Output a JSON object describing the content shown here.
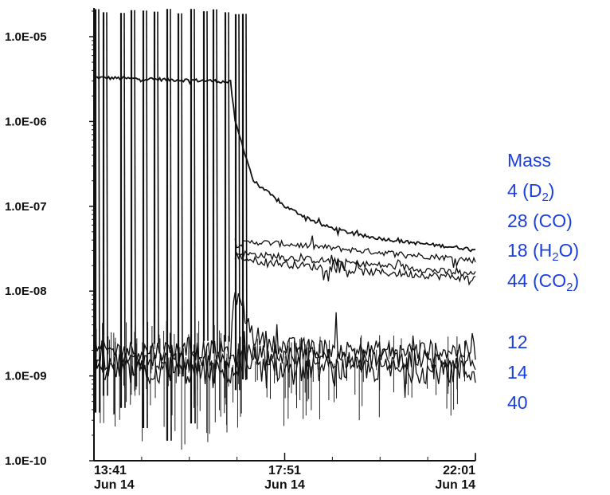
{
  "chart_data": {
    "type": "line",
    "title": "",
    "xlabel": "",
    "ylabel": "",
    "yscale": "log",
    "ylim": [
      1e-10,
      2e-05
    ],
    "y_ticks": [
      "1.0E-05",
      "1.0E-06",
      "1.0E-07",
      "1.0E-08",
      "1.0E-09",
      "1.0E-10"
    ],
    "x_ticks": [
      {
        "time": "13:41",
        "date": "Jun 14"
      },
      {
        "time": "17:51",
        "date": "Jun 14"
      },
      {
        "time": "22:01",
        "date": "Jun 14"
      }
    ],
    "xlim": [
      "13:41",
      "22:01"
    ],
    "legend": {
      "heading": "Mass",
      "entries": [
        {
          "main": "4 (D",
          "sub": "2",
          "tail": ")"
        },
        {
          "main": "28 (CO)",
          "sub": "",
          "tail": ""
        },
        {
          "main": "18 (H",
          "sub": "2",
          "tail": "O)"
        },
        {
          "main": "44 (CO",
          "sub": "2",
          "tail": ")"
        },
        {
          "main": "12",
          "sub": "",
          "tail": ""
        },
        {
          "main": "14",
          "sub": "",
          "tail": ""
        },
        {
          "main": "40",
          "sub": "",
          "tail": ""
        }
      ]
    },
    "series": [
      {
        "values": [
          [
            "13:41",
            3.3e-06
          ],
          [
            "14:30",
            3.2e-06
          ],
          [
            "15:30",
            3.1e-06
          ],
          [
            "16:20",
            3e-06
          ],
          [
            "16:40",
            2.9e-06
          ],
          [
            "16:46",
            1e-06
          ],
          [
            "17:10",
            2e-07
          ],
          [
            "17:51",
            1e-07
          ],
          [
            "18:40",
            6e-08
          ],
          [
            "19:30",
            4.5e-08
          ],
          [
            "20:30",
            3.8e-08
          ],
          [
            "21:20",
            3.4e-08
          ],
          [
            "22:01",
            3.1e-08
          ]
        ]
      },
      {
        "values": [
          [
            "16:46",
            3.5e-08
          ],
          [
            "17:10",
            3.8e-08
          ],
          [
            "17:51",
            3.6e-08
          ],
          [
            "18:40",
            3.3e-08
          ],
          [
            "19:30",
            3e-08
          ],
          [
            "20:30",
            2.7e-08
          ],
          [
            "21:20",
            2.5e-08
          ],
          [
            "22:01",
            2.3e-08
          ]
        ]
      },
      {
        "values": [
          [
            "16:46",
            2.8e-08
          ],
          [
            "17:10",
            2.7e-08
          ],
          [
            "17:51",
            2.5e-08
          ],
          [
            "18:40",
            2.3e-08
          ],
          [
            "19:30",
            2.1e-08
          ],
          [
            "20:30",
            1.9e-08
          ],
          [
            "21:20",
            1.7e-08
          ],
          [
            "22:01",
            1.6e-08
          ]
        ]
      },
      {
        "values": [
          [
            "16:46",
            2.6e-08
          ],
          [
            "17:10",
            2.3e-08
          ],
          [
            "17:51",
            2.1e-08
          ],
          [
            "18:40",
            1.9e-08
          ],
          [
            "19:30",
            1.7e-08
          ],
          [
            "20:30",
            1.6e-08
          ],
          [
            "21:20",
            1.5e-08
          ],
          [
            "22:01",
            1.4e-08
          ]
        ]
      },
      {
        "values": [
          [
            "13:41",
            2e-09
          ],
          [
            "16:40",
            2e-09
          ],
          [
            "16:46",
            1e-08
          ],
          [
            "17:10",
            3e-09
          ],
          [
            "17:51",
            2.2e-09
          ],
          [
            "19:30",
            2e-09
          ],
          [
            "22:01",
            2e-09
          ]
        ]
      },
      {
        "values": [
          [
            "13:41",
            1.5e-09
          ],
          [
            "16:40",
            1.5e-09
          ],
          [
            "17:00",
            1.8e-09
          ],
          [
            "19:30",
            1.6e-09
          ],
          [
            "22:01",
            1.5e-09
          ]
        ]
      },
      {
        "values": [
          [
            "13:41",
            1.1e-09
          ],
          [
            "16:40",
            1.1e-09
          ],
          [
            "17:00",
            1.2e-09
          ],
          [
            "19:30",
            1.2e-09
          ],
          [
            "22:01",
            1.1e-09
          ]
        ]
      }
    ]
  }
}
